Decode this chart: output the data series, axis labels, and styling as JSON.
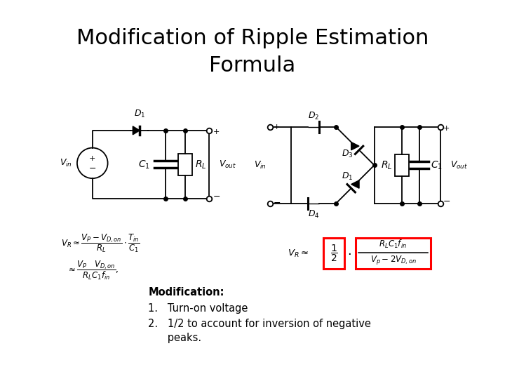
{
  "title_line1": "Modification of Ripple Estimation",
  "title_line2": "Formula",
  "title_fontsize": 22,
  "background_color": "#ffffff",
  "text_color": "#000000",
  "modification_header": "Modification:",
  "mod_item1": "1.   Turn-on voltage",
  "mod_item2": "2.   1/2 to account for inversion of negative",
  "mod_item3": "      peaks.",
  "mod_fontsize": 10.5,
  "box_color_red": "#cc0000",
  "lw_circuit": 1.2
}
